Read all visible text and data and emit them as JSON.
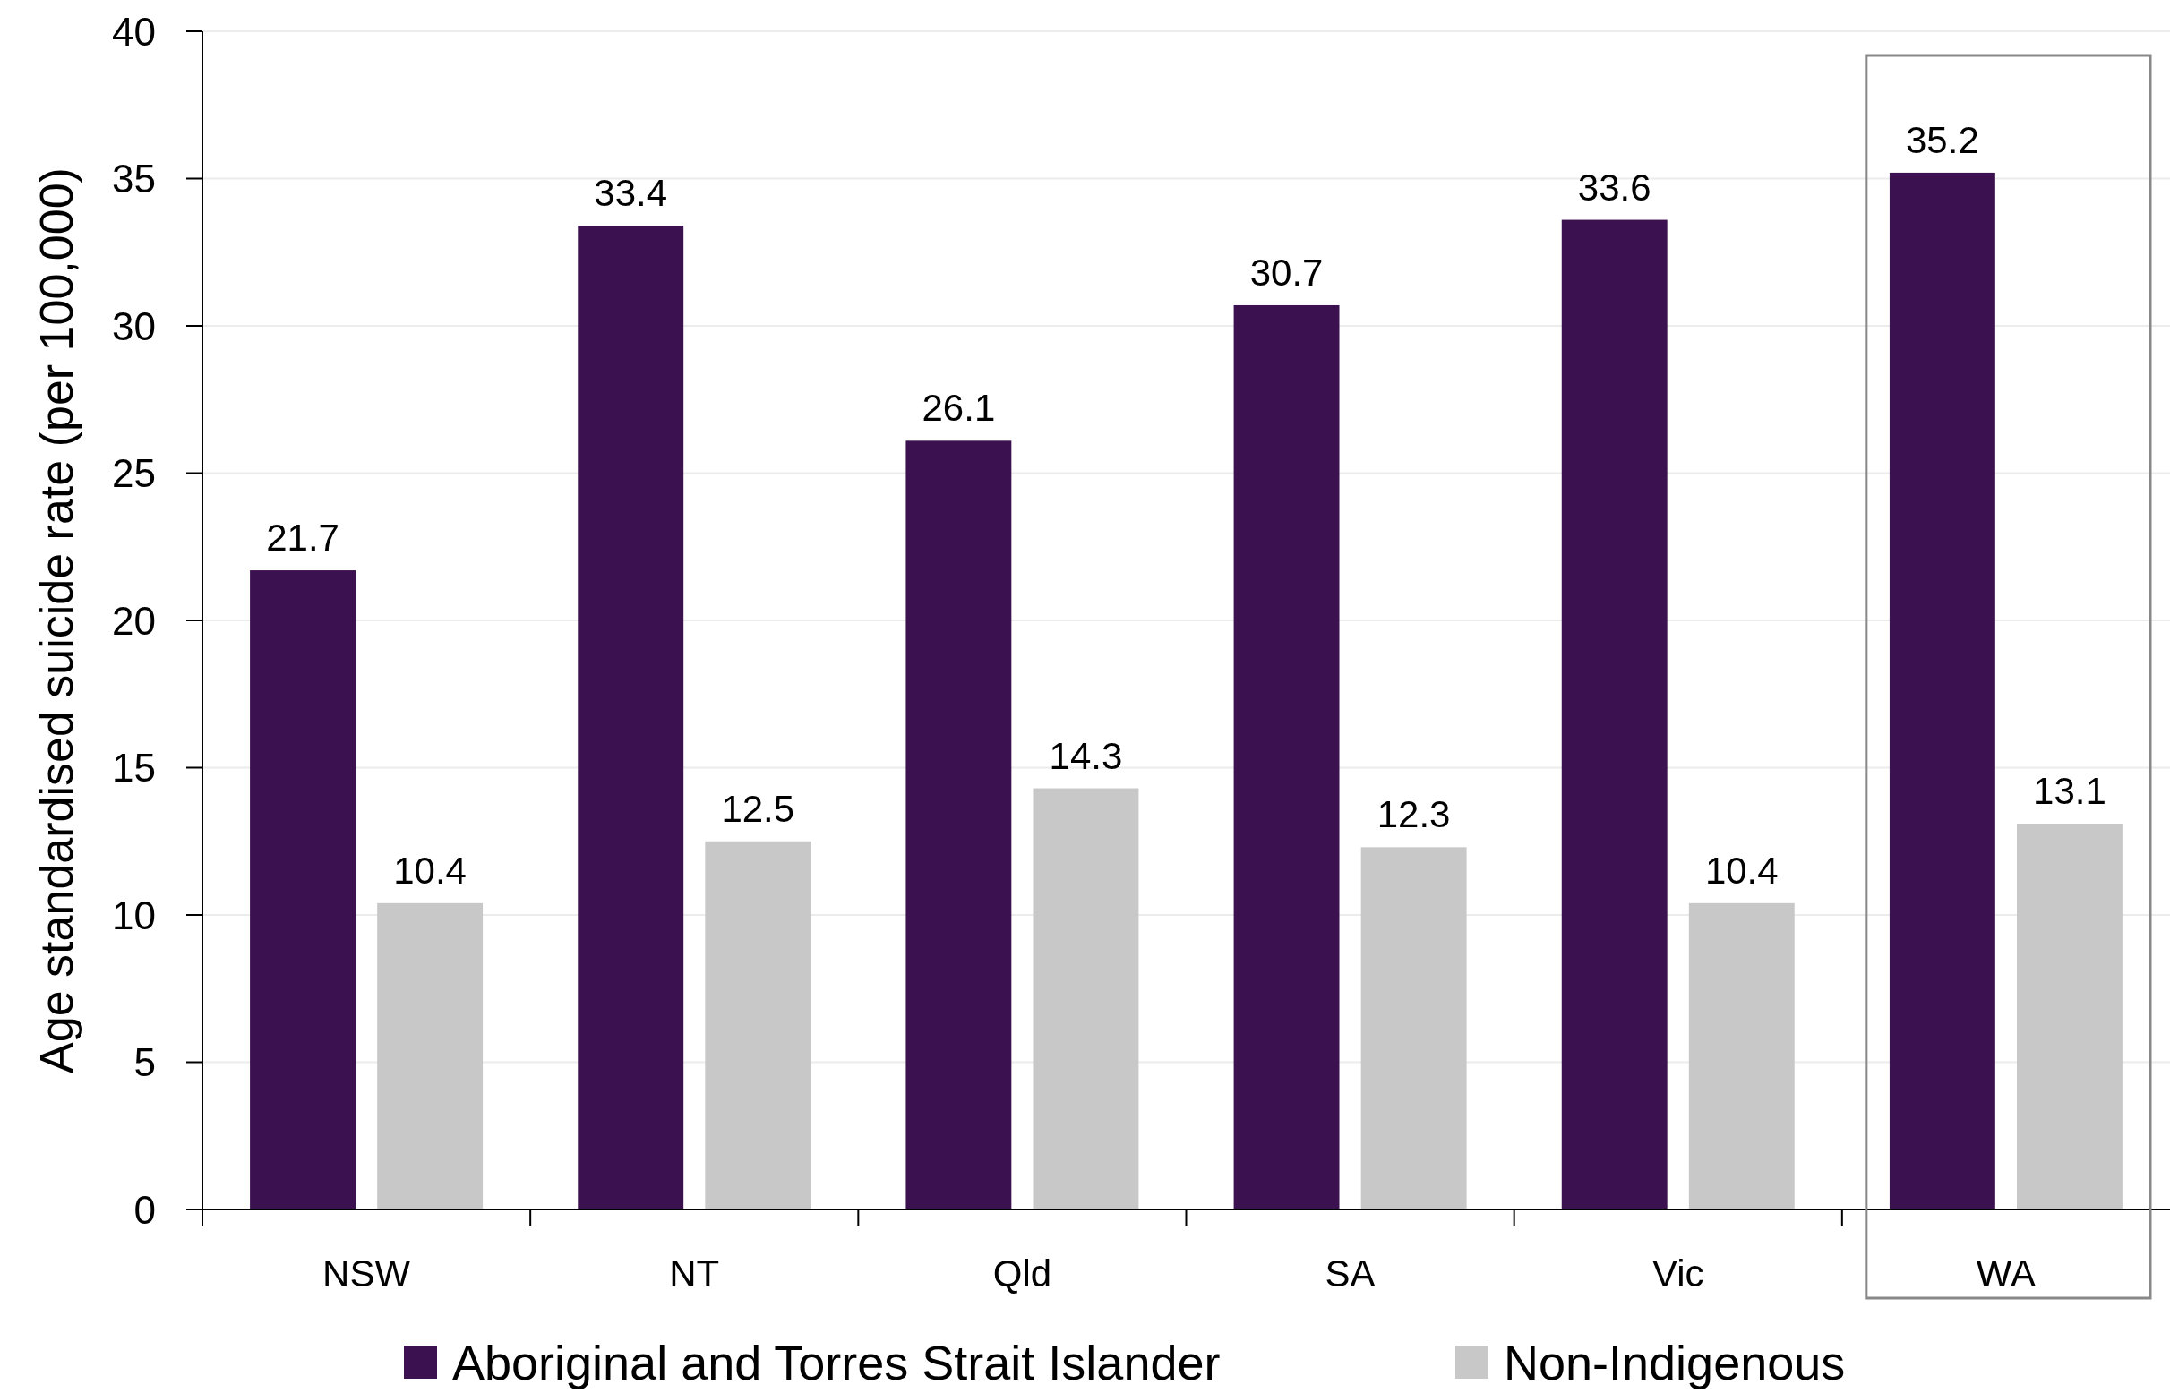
{
  "chart_data": {
    "type": "bar",
    "ylabel": "Age standardised suicide rate (per 100,000)",
    "categories": [
      "NSW",
      "NT",
      "Qld",
      "SA",
      "Vic",
      "WA"
    ],
    "series": [
      {
        "name": "Aboriginal and Torres Strait Islander",
        "color": "#3c1150",
        "values": [
          21.7,
          33.4,
          26.1,
          30.7,
          33.6,
          35.2
        ]
      },
      {
        "name": "Non-Indigenous",
        "color": "#c8c8c8",
        "values": [
          10.4,
          12.5,
          14.3,
          12.3,
          10.4,
          13.1
        ]
      }
    ],
    "ylim": [
      0,
      40
    ],
    "yticks": [
      0,
      5,
      10,
      15,
      20,
      25,
      30,
      35,
      40
    ],
    "grid": "y",
    "legend": "bottom",
    "data_labels": true
  }
}
